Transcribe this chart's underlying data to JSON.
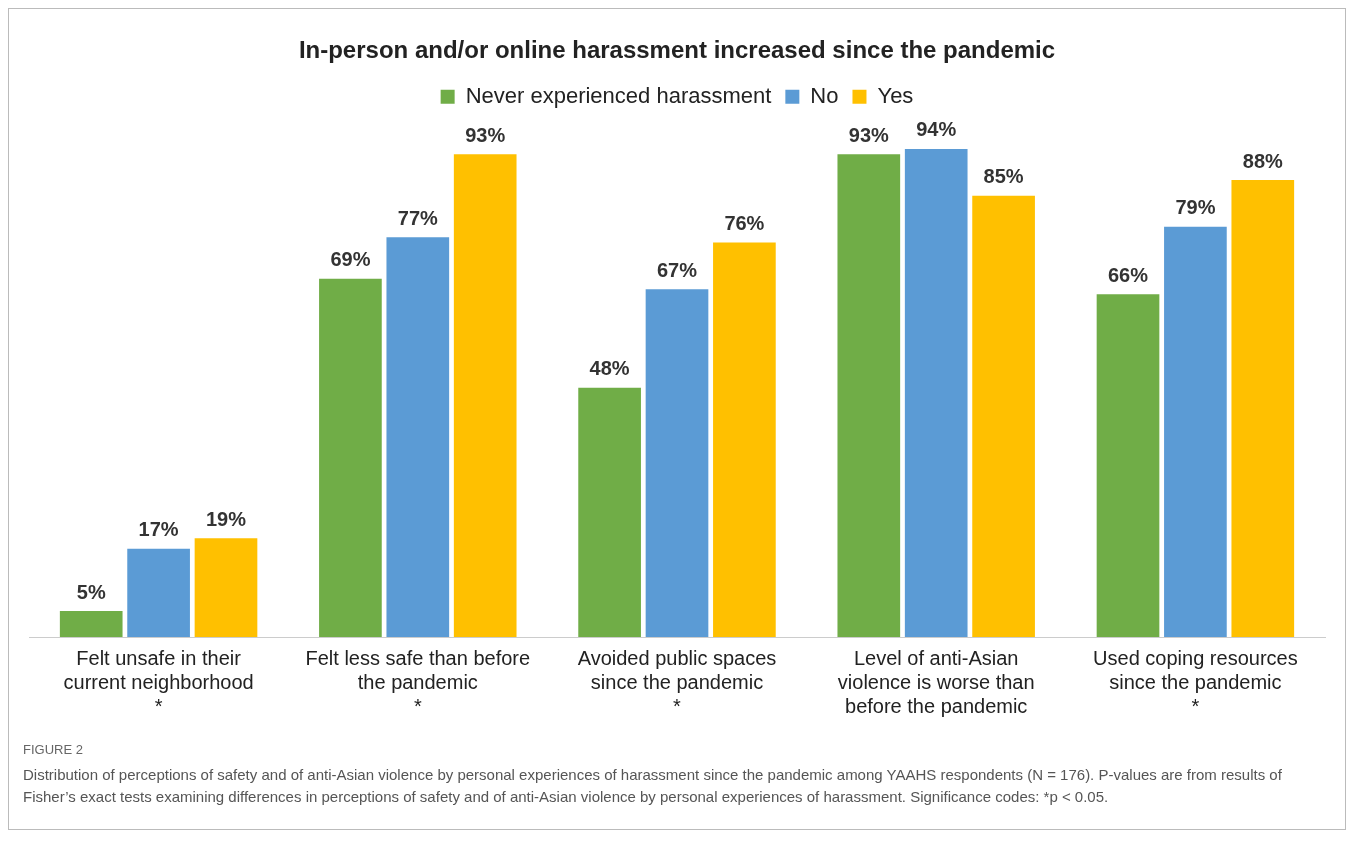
{
  "chart_data": {
    "type": "bar",
    "title": "In-person and/or online harassment increased since the pandemic",
    "categories": [
      "Felt unsafe in their\ncurrent neighborhood\n*",
      "Felt less safe than before\nthe pandemic\n*",
      "Avoided public spaces\nsince the pandemic\n*",
      "Level of anti-Asian\nviolence is worse than\nbefore the pandemic",
      "Used coping resources\nsince the pandemic\n*"
    ],
    "series": [
      {
        "name": "Never experienced harassment",
        "color": "#70ad47",
        "values": [
          5,
          69,
          48,
          93,
          66
        ],
        "value_labels": [
          "5%",
          "69%",
          "48%",
          "93%",
          "66%"
        ]
      },
      {
        "name": "No",
        "color": "#5b9bd5",
        "values": [
          17,
          77,
          67,
          94,
          79
        ],
        "value_labels": [
          "17%",
          "77%",
          "67%",
          "94%",
          "79%"
        ]
      },
      {
        "name": "Yes",
        "color": "#ffc000",
        "values": [
          19,
          93,
          76,
          85,
          88
        ],
        "value_labels": [
          "19%",
          "93%",
          "76%",
          "85%",
          "88%"
        ]
      }
    ],
    "legend": "top",
    "grid": false,
    "tick_labels": "x",
    "annotations": [
      "FIGURE 2",
      "Distribution of perceptions of safety and of anti-Asian violence by personal experiences of harassment since the pandemic among YAAHS respondents (N = 176). P-values are from results of Fisher’s exact tests examining differences in perceptions of safety and of anti-Asian violence by personal experiences of harassment. Significance codes: *p < 0.05."
    ]
  }
}
